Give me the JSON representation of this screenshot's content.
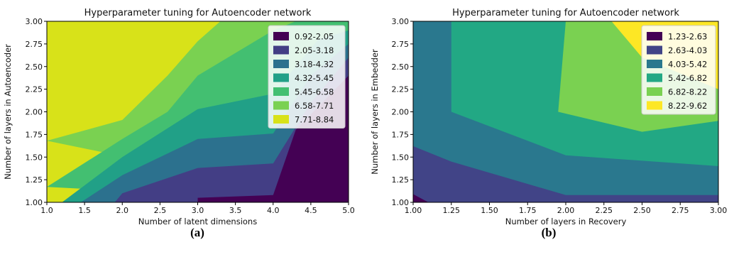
{
  "chart_data": [
    {
      "type": "contour",
      "title": "Hyperparameter tuning for Autoencoder network",
      "xlabel": "Number of latent dimensions",
      "ylabel": "Number of layers in Autoencoder",
      "xlim": [
        1.0,
        5.0
      ],
      "ylim": [
        1.0,
        3.0
      ],
      "xticks": [
        "1.0",
        "1.5",
        "2.0",
        "2.5",
        "3.0",
        "3.5",
        "4.0",
        "4.5",
        "5.0"
      ],
      "yticks": [
        "1.00",
        "1.25",
        "1.50",
        "1.75",
        "2.00",
        "2.25",
        "2.50",
        "2.75",
        "3.00"
      ],
      "legend_position": "top-right",
      "levels": [
        {
          "label": "0.92-2.05",
          "color": "#440154"
        },
        {
          "label": "2.05-3.18",
          "color": "#433e85"
        },
        {
          "label": "3.18-4.32",
          "color": "#2c718e"
        },
        {
          "label": "4.32-5.45",
          "color": "#21a087"
        },
        {
          "label": "5.45-6.58",
          "color": "#43bf71"
        },
        {
          "label": "6.58-7.71",
          "color": "#7ad151"
        },
        {
          "label": "7.71-8.84",
          "color": "#d8e219"
        }
      ],
      "boundaries": [
        {
          "level": 1,
          "points": [
            [
              3.0,
              1.0
            ],
            [
              3.0,
              1.05
            ],
            [
              4.0,
              1.08
            ],
            [
              4.3,
              1.8
            ],
            [
              5.0,
              2.4
            ],
            [
              5.0,
              1.0
            ]
          ]
        },
        {
          "level": 2,
          "points": [
            [
              1.9,
              1.0
            ],
            [
              2.0,
              1.1
            ],
            [
              3.0,
              1.38
            ],
            [
              4.0,
              1.43
            ],
            [
              4.5,
              2.1
            ],
            [
              5.0,
              2.6
            ],
            [
              5.0,
              1.0
            ]
          ]
        },
        {
          "level": 3,
          "points": [
            [
              1.45,
              1.0
            ],
            [
              2.0,
              1.3
            ],
            [
              3.0,
              1.7
            ],
            [
              4.0,
              1.76
            ],
            [
              4.5,
              2.4
            ],
            [
              5.0,
              2.75
            ],
            [
              5.0,
              1.0
            ]
          ]
        },
        {
          "level": 4,
          "points": [
            [
              1.2,
              1.0
            ],
            [
              2.0,
              1.5
            ],
            [
              3.0,
              2.03
            ],
            [
              4.0,
              2.2
            ],
            [
              4.6,
              2.8
            ],
            [
              5.0,
              2.9
            ],
            [
              5.0,
              1.0
            ]
          ]
        },
        {
          "level": 5,
          "points": [
            [
              1.0,
              1.17
            ],
            [
              2.0,
              1.7
            ],
            [
              2.6,
              2.0
            ],
            [
              3.0,
              2.4
            ],
            [
              4.0,
              2.9
            ],
            [
              4.3,
              3.0
            ],
            [
              5.0,
              3.0
            ],
            [
              5.0,
              1.0
            ]
          ]
        },
        {
          "level": 6,
          "points": [
            [
              1.0,
              1.68
            ],
            [
              2.0,
              1.91
            ],
            [
              2.6,
              2.4
            ],
            [
              3.0,
              2.78
            ],
            [
              3.3,
              3.0
            ],
            [
              5.0,
              3.0
            ],
            [
              5.0,
              1.0
            ]
          ]
        }
      ]
    },
    {
      "type": "contour",
      "title": "Hyperparameter tuning for Autoencoder network",
      "xlabel": "Number of layers in Recovery",
      "ylabel": "Number of layers in Embedder",
      "xlim": [
        1.0,
        3.0
      ],
      "ylim": [
        1.0,
        3.0
      ],
      "xticks": [
        "1.00",
        "1.25",
        "1.50",
        "1.75",
        "2.00",
        "2.25",
        "2.50",
        "2.75",
        "3.00"
      ],
      "yticks": [
        "1.00",
        "1.25",
        "1.50",
        "1.75",
        "2.00",
        "2.25",
        "2.50",
        "2.75",
        "3.00"
      ],
      "legend_position": "top-right",
      "levels": [
        {
          "label": "1.23-2.63",
          "color": "#440154"
        },
        {
          "label": "2.63-4.03",
          "color": "#414487"
        },
        {
          "label": "4.03-5.42",
          "color": "#2a788e"
        },
        {
          "label": "5.42-6.82",
          "color": "#22a884"
        },
        {
          "label": "6.82-8.22",
          "color": "#7ad151"
        },
        {
          "label": "8.22-9.62",
          "color": "#fde725"
        }
      ],
      "boundaries": [
        {
          "level": 1,
          "points": [
            [
              1.0,
              1.0
            ],
            [
              1.0,
              1.62
            ],
            [
              1.25,
              1.45
            ],
            [
              2.0,
              1.08
            ],
            [
              3.0,
              1.08
            ],
            [
              3.0,
              1.0
            ]
          ]
        },
        {
          "level": 2,
          "points": [
            [
              1.0,
              1.0
            ],
            [
              1.0,
              1.62
            ],
            [
              1.25,
              1.45
            ],
            [
              2.0,
              1.08
            ],
            [
              3.0,
              1.08
            ],
            [
              3.0,
              1.0
            ]
          ]
        },
        {
          "level": 3,
          "points": [
            [
              1.25,
              3.0
            ],
            [
              1.25,
              2.0
            ],
            [
              2.0,
              1.52
            ],
            [
              3.0,
              1.4
            ],
            [
              3.0,
              3.0
            ]
          ]
        },
        {
          "level": 4,
          "points": [
            [
              2.0,
              3.0
            ],
            [
              1.95,
              2.0
            ],
            [
              2.5,
              1.78
            ],
            [
              3.0,
              1.9
            ],
            [
              3.0,
              3.0
            ]
          ]
        },
        {
          "level": 5,
          "points": [
            [
              2.3,
              3.0
            ],
            [
              2.5,
              2.6
            ],
            [
              3.0,
              2.25
            ],
            [
              3.0,
              3.0
            ]
          ]
        }
      ],
      "corner_patch": {
        "level": 0,
        "points": [
          [
            1.0,
            1.0
          ],
          [
            1.0,
            1.09
          ],
          [
            1.1,
            1.0
          ]
        ]
      }
    }
  ],
  "captions": [
    "(a)",
    "(b)"
  ]
}
